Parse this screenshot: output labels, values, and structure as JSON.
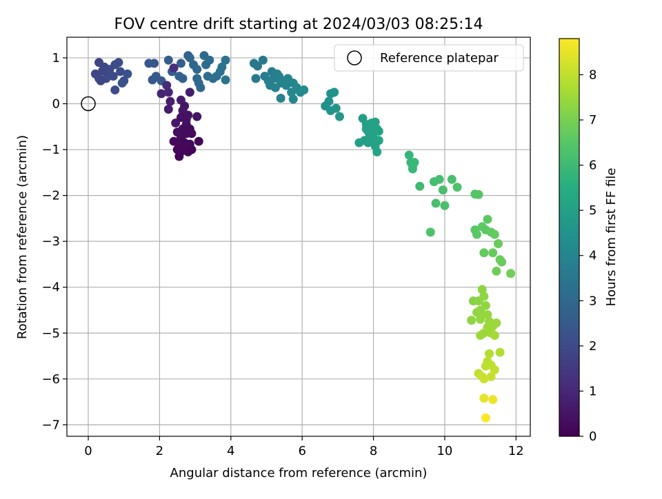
{
  "chart_data": {
    "type": "scatter",
    "title": "FOV centre drift starting at 2024/03/03 08:25:14",
    "xlabel": "Angular distance from reference (arcmin)",
    "ylabel": "Rotation from reference (arcmin)",
    "colorbar_label": "Hours from first FF file",
    "xlim": [
      -0.6,
      12.4
    ],
    "ylim": [
      -7.25,
      1.45
    ],
    "clim": [
      0,
      8.8
    ],
    "x_ticks": [
      0,
      2,
      4,
      6,
      8,
      10,
      12
    ],
    "y_ticks": [
      1,
      0,
      -1,
      -2,
      -3,
      -4,
      -5,
      -6,
      -7
    ],
    "colorbar_ticks": [
      0,
      1,
      2,
      3,
      4,
      5,
      6,
      7,
      8
    ],
    "colormap": "viridis",
    "grid": true,
    "legend_position": "top-right",
    "reference": {
      "name": "Reference platepar",
      "x": 0,
      "y": 0
    },
    "points": [
      [
        0.3,
        0.9,
        1.8
      ],
      [
        0.45,
        0.8,
        1.9
      ],
      [
        0.2,
        0.65,
        1.85
      ],
      [
        0.5,
        0.55,
        2.0
      ],
      [
        0.35,
        0.5,
        1.9
      ],
      [
        0.6,
        0.75,
        1.95
      ],
      [
        0.75,
        0.85,
        2.05
      ],
      [
        0.85,
        0.9,
        2.1
      ],
      [
        0.7,
        0.6,
        2.0
      ],
      [
        0.9,
        0.7,
        2.1
      ],
      [
        1.0,
        0.5,
        2.15
      ],
      [
        1.1,
        0.65,
        2.2
      ],
      [
        0.75,
        0.3,
        2.05
      ],
      [
        0.55,
        0.65,
        1.95
      ],
      [
        0.4,
        0.72,
        1.9
      ],
      [
        0.95,
        0.45,
        2.2
      ],
      [
        0.3,
        0.55,
        1.85
      ],
      [
        1.7,
        0.88,
        2.4
      ],
      [
        1.85,
        0.88,
        2.45
      ],
      [
        1.9,
        0.6,
        2.5
      ],
      [
        1.8,
        0.52,
        2.45
      ],
      [
        2.05,
        0.5,
        2.5
      ],
      [
        2.25,
        0.95,
        2.6
      ],
      [
        2.35,
        0.7,
        2.65
      ],
      [
        2.55,
        0.6,
        2.7
      ],
      [
        2.65,
        0.55,
        2.75
      ],
      [
        2.6,
        0.88,
        2.7
      ],
      [
        2.8,
        1.05,
        2.8
      ],
      [
        2.85,
        1.0,
        2.85
      ],
      [
        2.95,
        0.85,
        2.9
      ],
      [
        3.05,
        0.75,
        2.95
      ],
      [
        3.1,
        0.45,
        3.0
      ],
      [
        3.15,
        0.35,
        3.0
      ],
      [
        3.25,
        1.05,
        3.05
      ],
      [
        3.3,
        0.85,
        3.1
      ],
      [
        3.4,
        0.95,
        3.1
      ],
      [
        3.35,
        0.6,
        3.15
      ],
      [
        3.5,
        0.55,
        3.2
      ],
      [
        3.6,
        0.6,
        3.25
      ],
      [
        3.7,
        0.7,
        3.3
      ],
      [
        3.75,
        0.8,
        3.3
      ],
      [
        3.85,
        0.95,
        3.35
      ],
      [
        3.85,
        0.52,
        3.4
      ],
      [
        3.05,
        0.55,
        3.0
      ],
      [
        2.2,
        0.4,
        1.1
      ],
      [
        2.05,
        0.22,
        0.9
      ],
      [
        2.25,
        0.25,
        1.0
      ],
      [
        2.3,
        0.05,
        0.8
      ],
      [
        2.4,
        0.78,
        1.2
      ],
      [
        2.25,
        -0.12,
        0.7
      ],
      [
        2.45,
        -0.42,
        0.6
      ],
      [
        2.6,
        0.08,
        0.7
      ],
      [
        2.7,
        -0.05,
        0.5
      ],
      [
        2.85,
        0.25,
        0.75
      ],
      [
        2.65,
        -0.15,
        0.55
      ],
      [
        2.8,
        -0.25,
        0.45
      ],
      [
        2.6,
        -0.3,
        0.4
      ],
      [
        2.75,
        -0.45,
        0.35
      ],
      [
        3.05,
        -0.28,
        0.5
      ],
      [
        2.5,
        -0.62,
        0.3
      ],
      [
        2.65,
        -0.55,
        0.3
      ],
      [
        2.75,
        -0.65,
        0.25
      ],
      [
        2.85,
        -0.55,
        0.28
      ],
      [
        2.6,
        -0.75,
        0.25
      ],
      [
        2.4,
        -0.82,
        0.2
      ],
      [
        2.55,
        -0.9,
        0.2
      ],
      [
        2.7,
        -0.85,
        0.18
      ],
      [
        2.85,
        -0.88,
        0.2
      ],
      [
        2.5,
        -1.0,
        0.15
      ],
      [
        2.65,
        -1.02,
        0.12
      ],
      [
        2.8,
        -1.05,
        0.15
      ],
      [
        2.55,
        -1.15,
        0.08
      ],
      [
        2.9,
        -1.0,
        0.1
      ],
      [
        2.65,
        -0.95,
        0.15
      ],
      [
        3.1,
        -0.82,
        0.12
      ],
      [
        2.9,
        -0.65,
        0.25
      ],
      [
        2.75,
        -0.35,
        0.4
      ],
      [
        4.65,
        0.88,
        3.5
      ],
      [
        4.75,
        0.82,
        3.55
      ],
      [
        4.9,
        0.95,
        3.6
      ],
      [
        4.7,
        0.55,
        3.6
      ],
      [
        4.95,
        0.6,
        3.65
      ],
      [
        5.05,
        0.5,
        3.7
      ],
      [
        5.15,
        0.7,
        3.7
      ],
      [
        5.2,
        0.55,
        3.75
      ],
      [
        5.3,
        0.65,
        3.8
      ],
      [
        5.1,
        0.4,
        3.8
      ],
      [
        5.25,
        0.35,
        3.85
      ],
      [
        5.4,
        0.45,
        3.9
      ],
      [
        5.5,
        0.5,
        3.95
      ],
      [
        5.6,
        0.55,
        4.0
      ],
      [
        5.4,
        0.12,
        3.95
      ],
      [
        5.75,
        0.45,
        4.05
      ],
      [
        5.85,
        0.35,
        4.1
      ],
      [
        5.7,
        0.25,
        4.1
      ],
      [
        5.95,
        0.25,
        4.15
      ],
      [
        6.05,
        0.3,
        4.2
      ],
      [
        5.75,
        0.1,
        4.1
      ],
      [
        5.35,
        0.6,
        3.85
      ],
      [
        5.55,
        0.4,
        3.95
      ],
      [
        6.65,
        -0.05,
        4.4
      ],
      [
        6.75,
        0.05,
        4.45
      ],
      [
        6.8,
        0.22,
        4.5
      ],
      [
        6.9,
        0.25,
        4.55
      ],
      [
        6.8,
        -0.15,
        4.5
      ],
      [
        6.95,
        -0.1,
        4.6
      ],
      [
        7.05,
        -0.28,
        4.65
      ],
      [
        7.7,
        -0.32,
        4.9
      ],
      [
        7.8,
        -0.45,
        4.95
      ],
      [
        7.85,
        -0.6,
        5.0
      ],
      [
        7.9,
        -0.7,
        5.0
      ],
      [
        7.95,
        -0.42,
        5.05
      ],
      [
        8.05,
        -0.4,
        5.05
      ],
      [
        8.1,
        -0.55,
        5.1
      ],
      [
        8.15,
        -0.6,
        5.1
      ],
      [
        8.0,
        -0.75,
        5.05
      ],
      [
        7.75,
        -0.8,
        5.0
      ],
      [
        7.6,
        -0.85,
        4.95
      ],
      [
        7.85,
        -0.85,
        5.0
      ],
      [
        8.05,
        -0.92,
        5.1
      ],
      [
        8.15,
        -0.8,
        5.15
      ],
      [
        8.1,
        -1.05,
        5.15
      ],
      [
        7.95,
        -0.6,
        5.05
      ],
      [
        7.8,
        -0.55,
        5.0
      ],
      [
        9.0,
        -1.12,
        5.8
      ],
      [
        9.05,
        -1.28,
        5.85
      ],
      [
        9.1,
        -1.35,
        5.85
      ],
      [
        9.15,
        -1.28,
        5.9
      ],
      [
        9.1,
        -1.42,
        5.9
      ],
      [
        9.3,
        -1.8,
        6.0
      ],
      [
        9.7,
        -1.7,
        6.1
      ],
      [
        9.85,
        -1.65,
        6.15
      ],
      [
        9.95,
        -1.88,
        6.2
      ],
      [
        9.75,
        -2.17,
        6.2
      ],
      [
        10.0,
        -2.22,
        6.25
      ],
      [
        10.2,
        -1.65,
        6.2
      ],
      [
        10.35,
        -1.82,
        6.3
      ],
      [
        9.6,
        -2.8,
        6.3
      ],
      [
        10.85,
        -1.97,
        6.4
      ],
      [
        10.95,
        -1.98,
        6.45
      ],
      [
        10.85,
        -2.75,
        6.5
      ],
      [
        10.9,
        -2.85,
        6.55
      ],
      [
        11.05,
        -2.68,
        6.6
      ],
      [
        11.15,
        -2.75,
        6.6
      ],
      [
        11.2,
        -2.52,
        6.6
      ],
      [
        11.3,
        -2.8,
        6.65
      ],
      [
        11.4,
        -2.85,
        6.7
      ],
      [
        11.5,
        -3.05,
        6.75
      ],
      [
        11.1,
        -3.25,
        6.7
      ],
      [
        11.35,
        -3.25,
        6.75
      ],
      [
        11.55,
        -3.4,
        6.8
      ],
      [
        11.6,
        -3.45,
        6.8
      ],
      [
        11.45,
        -3.65,
        6.85
      ],
      [
        11.85,
        -3.7,
        6.9
      ],
      [
        10.8,
        -4.3,
        7.2
      ],
      [
        10.95,
        -4.3,
        7.25
      ],
      [
        11.0,
        -4.5,
        7.3
      ],
      [
        11.05,
        -4.05,
        7.3
      ],
      [
        11.1,
        -4.2,
        7.3
      ],
      [
        11.15,
        -4.4,
        7.35
      ],
      [
        11.2,
        -4.6,
        7.4
      ],
      [
        10.9,
        -4.55,
        7.35
      ],
      [
        10.75,
        -4.72,
        7.3
      ],
      [
        11.0,
        -4.7,
        7.4
      ],
      [
        11.25,
        -4.75,
        7.45
      ],
      [
        11.35,
        -4.85,
        7.5
      ],
      [
        11.45,
        -4.78,
        7.5
      ],
      [
        11.3,
        -5.0,
        7.55
      ],
      [
        11.4,
        -5.05,
        7.6
      ],
      [
        11.1,
        -5.0,
        7.5
      ],
      [
        11.0,
        -5.05,
        7.5
      ],
      [
        11.2,
        -4.88,
        7.5
      ],
      [
        11.05,
        -4.6,
        7.4
      ],
      [
        11.25,
        -5.45,
        7.8
      ],
      [
        11.55,
        -5.42,
        7.8
      ],
      [
        11.2,
        -5.62,
        7.9
      ],
      [
        11.3,
        -5.7,
        7.95
      ],
      [
        11.15,
        -5.72,
        7.95
      ],
      [
        11.4,
        -5.8,
        8.0
      ],
      [
        10.95,
        -5.88,
        8.05
      ],
      [
        11.05,
        -5.95,
        8.1
      ],
      [
        11.3,
        -5.95,
        8.1
      ],
      [
        11.1,
        -6.0,
        8.15
      ],
      [
        11.1,
        -6.42,
        8.5
      ],
      [
        11.35,
        -6.45,
        8.55
      ],
      [
        11.15,
        -6.85,
        8.8
      ]
    ]
  }
}
